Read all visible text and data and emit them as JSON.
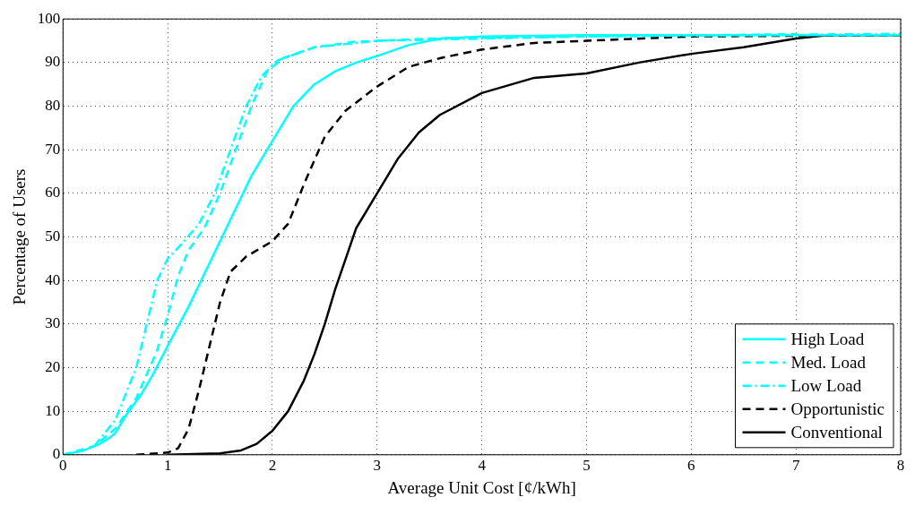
{
  "chart_data": {
    "type": "line",
    "xlabel": "Average Unit Cost [¢/kWh]",
    "ylabel": "Percentage of Users",
    "xlim": [
      0,
      8
    ],
    "xticks": [
      0,
      1,
      2,
      3,
      4,
      5,
      6,
      7,
      8
    ],
    "ylim": [
      0,
      100
    ],
    "yticks": [
      0,
      10,
      20,
      30,
      40,
      50,
      60,
      70,
      80,
      90,
      100
    ],
    "grid": true,
    "legend": "bottom right",
    "marker": "none",
    "series": [
      {
        "name": "High Load",
        "color": "#00ffff",
        "line_style": "solid",
        "x": [
          0,
          0.2,
          0.35,
          0.45,
          0.5,
          0.6,
          0.75,
          0.85,
          1,
          1.2,
          1.4,
          1.6,
          1.8,
          2,
          2.2,
          2.4,
          2.6,
          2.8,
          3,
          3.3,
          3.6,
          4,
          5,
          8
        ],
        "values": [
          0,
          1,
          2.5,
          4,
          5,
          9,
          14,
          18,
          25,
          34,
          44,
          54,
          64,
          72,
          80,
          85,
          88,
          90,
          91.5,
          94,
          95.5,
          96,
          96.3,
          96.3
        ]
      },
      {
        "name": "Med. Load",
        "color": "#00ffff",
        "line_style": "dashed",
        "x": [
          0,
          0.3,
          0.5,
          0.7,
          0.9,
          1,
          1.1,
          1.2,
          1.35,
          1.5,
          1.65,
          1.8,
          1.95,
          2.1,
          2.4,
          2.8,
          3.5,
          5,
          7
        ],
        "values": [
          0,
          2,
          6,
          13,
          24,
          32,
          41,
          47,
          52,
          60,
          70,
          80,
          88,
          91,
          93.5,
          94.8,
          95.5,
          96,
          96.5
        ]
      },
      {
        "name": "Low Load",
        "color": "#00ffff",
        "line_style": "dashdot",
        "x": [
          0.3,
          0.5,
          0.7,
          0.8,
          0.9,
          1,
          1.1,
          1.3,
          1.45,
          1.6,
          1.75,
          1.9,
          2.05,
          2.4,
          3,
          5,
          8
        ],
        "values": [
          2,
          8,
          20,
          30,
          40,
          45,
          47.5,
          53,
          60,
          70,
          80,
          87,
          90.5,
          93.5,
          95,
          96,
          96.6
        ]
      },
      {
        "name": "Opportunistic",
        "color": "#000000",
        "line_style": "dashed",
        "x": [
          0.7,
          1,
          1.1,
          1.2,
          1.3,
          1.4,
          1.5,
          1.6,
          1.75,
          2,
          2.15,
          2.3,
          2.5,
          2.7,
          3,
          3.3,
          3.6,
          4,
          4.5,
          5,
          6,
          8
        ],
        "values": [
          0,
          0.5,
          1.5,
          6,
          15,
          25,
          35,
          42,
          45.5,
          49,
          53,
          62,
          73,
          79,
          84.5,
          89,
          91,
          93,
          94.5,
          95,
          96,
          96.3
        ]
      },
      {
        "name": "Conventional",
        "color": "#000000",
        "line_style": "solid",
        "x": [
          1,
          1.5,
          1.7,
          1.85,
          2,
          2.15,
          2.3,
          2.4,
          2.5,
          2.6,
          2.7,
          2.8,
          3,
          3.2,
          3.4,
          3.6,
          4,
          4.5,
          5,
          5.5,
          6,
          6.5,
          7,
          7.3,
          8
        ],
        "values": [
          0,
          0.3,
          1,
          2.5,
          5.5,
          10,
          17,
          23,
          30,
          38,
          45,
          52,
          60,
          68,
          74,
          78,
          83,
          86.5,
          87.5,
          90,
          92,
          93.5,
          95.5,
          96.3,
          96.3
        ]
      }
    ]
  }
}
